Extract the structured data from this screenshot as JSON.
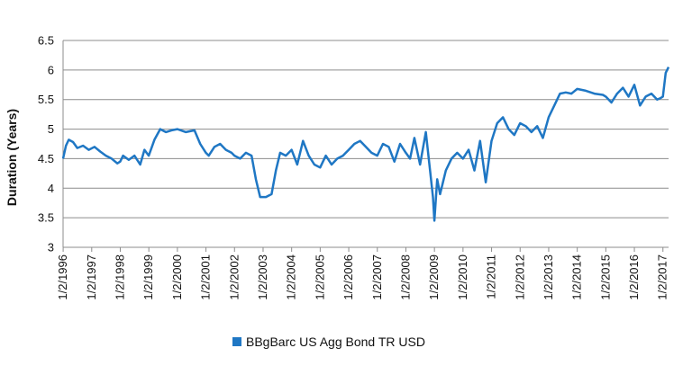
{
  "chart_data": {
    "type": "line",
    "ylabel": "Duration (Years)",
    "ylim": [
      3,
      6.5
    ],
    "yticks": [
      "3",
      "3.5",
      "4",
      "4.5",
      "5",
      "5.5",
      "6",
      "6.5"
    ],
    "xlim": [
      1996.0,
      2017.2
    ],
    "xticks": [
      "1/2/1996",
      "1/2/1997",
      "1/2/1998",
      "1/2/1999",
      "1/2/2000",
      "1/2/2001",
      "1/2/2002",
      "1/2/2003",
      "1/2/2004",
      "1/2/2005",
      "1/2/2006",
      "1/2/2007",
      "1/2/2008",
      "1/2/2009",
      "1/2/2010",
      "1/2/2011",
      "1/2/2012",
      "1/2/2013",
      "1/2/2014",
      "1/2/2015",
      "1/2/2016",
      "1/2/2017"
    ],
    "grid": "horizontal",
    "legend_position": "bottom",
    "series": [
      {
        "name": "BBgBarc US Agg Bond TR USD",
        "color": "#1f77c4",
        "x": [
          1996.0,
          1996.1,
          1996.2,
          1996.35,
          1996.5,
          1996.7,
          1996.9,
          1997.1,
          1997.3,
          1997.5,
          1997.7,
          1997.9,
          1998.0,
          1998.1,
          1998.3,
          1998.5,
          1998.7,
          1998.85,
          1999.0,
          1999.2,
          1999.4,
          1999.6,
          1999.8,
          2000.0,
          2000.3,
          2000.6,
          2000.8,
          2001.0,
          2001.1,
          2001.3,
          2001.5,
          2001.7,
          2001.9,
          2002.0,
          2002.2,
          2002.4,
          2002.6,
          2002.75,
          2002.9,
          2003.1,
          2003.3,
          2003.45,
          2003.6,
          2003.8,
          2004.0,
          2004.2,
          2004.4,
          2004.6,
          2004.8,
          2005.0,
          2005.2,
          2005.4,
          2005.6,
          2005.8,
          2006.0,
          2006.2,
          2006.4,
          2006.6,
          2006.8,
          2007.0,
          2007.2,
          2007.4,
          2007.6,
          2007.8,
          2008.0,
          2008.15,
          2008.3,
          2008.5,
          2008.7,
          2008.85,
          2008.95,
          2009.0,
          2009.1,
          2009.2,
          2009.4,
          2009.6,
          2009.8,
          2010.0,
          2010.2,
          2010.4,
          2010.6,
          2010.8,
          2011.0,
          2011.2,
          2011.4,
          2011.6,
          2011.8,
          2012.0,
          2012.2,
          2012.4,
          2012.6,
          2012.8,
          2013.0,
          2013.2,
          2013.4,
          2013.6,
          2013.8,
          2014.0,
          2014.3,
          2014.6,
          2014.9,
          2015.0,
          2015.2,
          2015.4,
          2015.6,
          2015.8,
          2016.0,
          2016.2,
          2016.4,
          2016.6,
          2016.8,
          2016.9,
          2017.0,
          2017.1,
          2017.2
        ],
        "y": [
          4.5,
          4.72,
          4.82,
          4.78,
          4.68,
          4.72,
          4.65,
          4.7,
          4.62,
          4.55,
          4.5,
          4.42,
          4.45,
          4.55,
          4.48,
          4.55,
          4.4,
          4.65,
          4.55,
          4.82,
          5.0,
          4.95,
          4.98,
          5.0,
          4.95,
          4.98,
          4.75,
          4.6,
          4.55,
          4.7,
          4.75,
          4.65,
          4.6,
          4.55,
          4.5,
          4.6,
          4.55,
          4.15,
          3.85,
          3.85,
          3.9,
          4.3,
          4.6,
          4.55,
          4.65,
          4.4,
          4.8,
          4.55,
          4.4,
          4.35,
          4.55,
          4.4,
          4.5,
          4.55,
          4.65,
          4.75,
          4.8,
          4.7,
          4.6,
          4.55,
          4.75,
          4.7,
          4.45,
          4.75,
          4.6,
          4.5,
          4.85,
          4.4,
          4.95,
          4.3,
          3.85,
          3.45,
          4.15,
          3.9,
          4.3,
          4.5,
          4.6,
          4.5,
          4.65,
          4.3,
          4.8,
          4.1,
          4.8,
          5.1,
          5.2,
          5.0,
          4.9,
          5.1,
          5.05,
          4.95,
          5.05,
          4.85,
          5.2,
          5.4,
          5.6,
          5.62,
          5.6,
          5.68,
          5.65,
          5.6,
          5.58,
          5.55,
          5.45,
          5.6,
          5.7,
          5.55,
          5.75,
          5.4,
          5.55,
          5.6,
          5.5,
          5.52,
          5.55,
          5.95,
          6.05
        ]
      }
    ]
  }
}
